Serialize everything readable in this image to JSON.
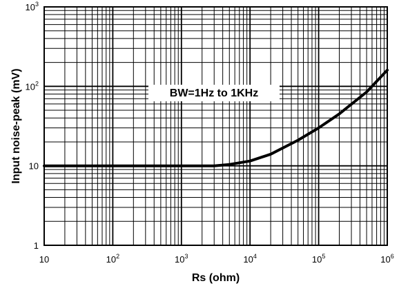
{
  "chart_data": {
    "type": "line",
    "title": "",
    "xlabel": "Rs (ohm)",
    "ylabel": "Input noise-peak (mV)",
    "x_scale": "log",
    "y_scale": "log",
    "xlim": [
      10,
      1000000
    ],
    "ylim": [
      1,
      1000
    ],
    "grid": true,
    "x_ticks": [
      {
        "base": "10",
        "exp": ""
      },
      {
        "base": "10",
        "exp": "2"
      },
      {
        "base": "10",
        "exp": "3"
      },
      {
        "base": "10",
        "exp": "4"
      },
      {
        "base": "10",
        "exp": "5"
      },
      {
        "base": "10",
        "exp": "6"
      }
    ],
    "y_ticks": [
      {
        "base": "1",
        "exp": ""
      },
      {
        "base": "10",
        "exp": ""
      },
      {
        "base": "10",
        "exp": "2"
      },
      {
        "base": "10",
        "exp": "3"
      }
    ],
    "annotation": "BW=1Hz to 1KHz",
    "series": [
      {
        "x": [
          10,
          100,
          1000,
          3000,
          5000,
          10000,
          20000,
          50000,
          100000,
          200000,
          500000,
          1000000
        ],
        "y": [
          10,
          10,
          10,
          10,
          10.4,
          11.5,
          14,
          21,
          30,
          45,
          85,
          160
        ]
      }
    ]
  }
}
